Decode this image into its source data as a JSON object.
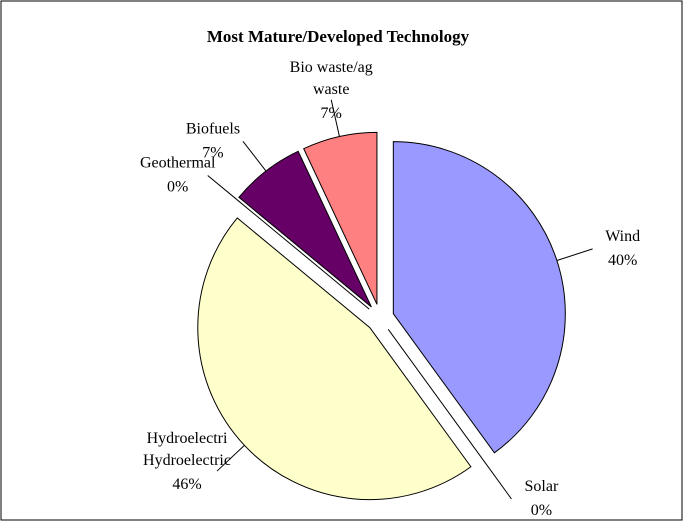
{
  "chart_data": {
    "type": "pie",
    "title": "Most Mature/Developed Technology",
    "categories": [
      "Wind",
      "Solar",
      "Hydroelectric",
      "Geothermal",
      "Biofuels",
      "Bio waste/ag waste"
    ],
    "values": [
      40,
      0,
      46,
      0,
      7,
      7
    ],
    "value_labels": [
      "40%",
      "0%",
      "46%",
      "0%",
      "7%",
      "7%"
    ],
    "colors": [
      "#9999ff",
      "#993366",
      "#ffffcc",
      "#ccffff",
      "#660066",
      "#ff8080"
    ],
    "exploded": true
  }
}
